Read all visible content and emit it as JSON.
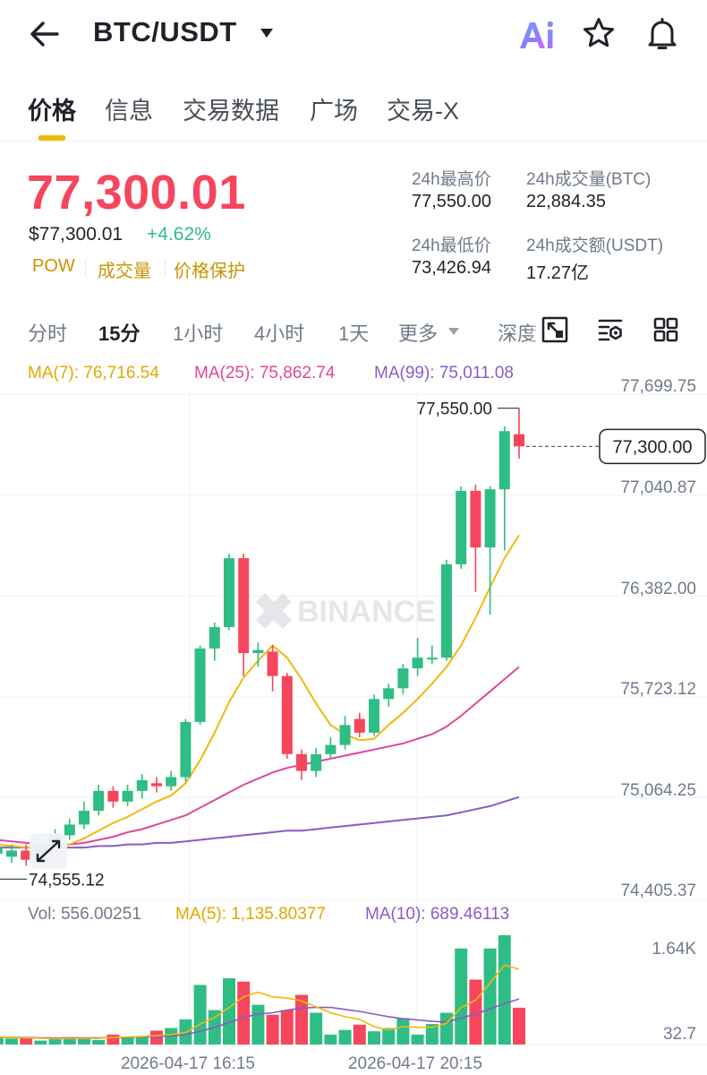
{
  "header": {
    "pair": "BTC/USDT",
    "icons": [
      "back-arrow-icon",
      "caret-down-icon",
      "ai-icon",
      "star-icon",
      "bell-icon"
    ]
  },
  "tabs": [
    {
      "label": "价格",
      "active": true
    },
    {
      "label": "信息",
      "active": false
    },
    {
      "label": "交易数据",
      "active": false
    },
    {
      "label": "广场",
      "active": false
    },
    {
      "label": "交易-X",
      "active": false
    }
  ],
  "price": {
    "last": "77,300.01",
    "usd": "$77,300.01",
    "change": "+4.62%",
    "tags": [
      "POW",
      "成交量",
      "价格保护"
    ]
  },
  "stats": {
    "high_label": "24h最高价",
    "high_value": "77,550.00",
    "vol_btc_label": "24h成交量(BTC)",
    "vol_btc_value": "22,884.35",
    "low_label": "24h最低价",
    "low_value": "73,426.94",
    "vol_usdt_label": "24h成交额(USDT)",
    "vol_usdt_value": "17.27亿"
  },
  "intervals": {
    "items": [
      "分时",
      "15分",
      "1小时",
      "4小时",
      "1天",
      "更多",
      "深度"
    ],
    "active": "15分"
  },
  "indicators": {
    "ma7": "MA(7): 76,716.54",
    "ma25": "MA(25): 75,862.74",
    "ma99": "MA(99): 75,011.08",
    "vol": "Vol: 556.00251",
    "vol_ma5": "MA(5): 1,135.80377",
    "vol_ma10": "MA(10): 689.46113"
  },
  "colors": {
    "up": "#2ebd85",
    "down": "#f6465d",
    "ma7": "#f0b90b",
    "ma25": "#e0469c",
    "ma99": "#8a5cc4",
    "accent": "#f0b90b"
  },
  "chart_data": {
    "type": "candlestick",
    "watermark": "BINANCE",
    "y_axis_ticks": [
      "77,699.75",
      "77,040.87",
      "76,382.00",
      "75,723.12",
      "75,064.25",
      "74,405.37"
    ],
    "ylim": [
      74300,
      77800
    ],
    "x_axis_ticks": [
      "2026-04-17 16:15",
      "2026-04-17 20:15"
    ],
    "last_price_label": "77,300.00",
    "last_price": 77300,
    "high_label": "77,550.00",
    "high": 77550,
    "low_label": "74,555.12",
    "low": 74555.12,
    "candles": [
      [
        74640,
        74680,
        74600,
        74720
      ],
      [
        74620,
        74660,
        74580,
        74700
      ],
      [
        74660,
        74600,
        74560,
        74700
      ],
      [
        74610,
        74700,
        74590,
        74740
      ],
      [
        74700,
        74760,
        74670,
        74800
      ],
      [
        74760,
        74830,
        74730,
        74870
      ],
      [
        74830,
        74920,
        74800,
        74980
      ],
      [
        74920,
        75050,
        74890,
        75090
      ],
      [
        75050,
        74980,
        74940,
        75080
      ],
      [
        74980,
        75050,
        74950,
        75090
      ],
      [
        75050,
        75120,
        75000,
        75160
      ],
      [
        75100,
        75080,
        75040,
        75140
      ],
      [
        75080,
        75140,
        75050,
        75180
      ],
      [
        75140,
        75500,
        75110,
        75520
      ],
      [
        75500,
        75980,
        75480,
        76000
      ],
      [
        75980,
        76120,
        75900,
        76150
      ],
      [
        76120,
        76570,
        76100,
        76600
      ],
      [
        76570,
        75950,
        75800,
        76600
      ],
      [
        75950,
        75970,
        75860,
        76020
      ],
      [
        75960,
        75800,
        75700,
        76000
      ],
      [
        75800,
        75290,
        75260,
        75820
      ],
      [
        75290,
        75180,
        75120,
        75320
      ],
      [
        75180,
        75290,
        75140,
        75330
      ],
      [
        75290,
        75350,
        75260,
        75400
      ],
      [
        75350,
        75480,
        75320,
        75540
      ],
      [
        75520,
        75430,
        75400,
        75560
      ],
      [
        75430,
        75650,
        75410,
        75680
      ],
      [
        75650,
        75720,
        75600,
        75750
      ],
      [
        75720,
        75850,
        75680,
        75880
      ],
      [
        75850,
        75920,
        75800,
        76050
      ],
      [
        75920,
        75920,
        75880,
        76000
      ],
      [
        75920,
        76530,
        75900,
        76560
      ],
      [
        76530,
        77010,
        76500,
        77040
      ],
      [
        77010,
        76640,
        76350,
        77050
      ],
      [
        76640,
        77020,
        76200,
        77040
      ],
      [
        77020,
        77400,
        76620,
        77430
      ],
      [
        77380,
        77300,
        77220,
        77550
      ]
    ],
    "ma7": [
      74700,
      74690,
      74680,
      74670,
      74680,
      74700,
      74740,
      74790,
      74840,
      74880,
      74930,
      74980,
      75020,
      75100,
      75250,
      75430,
      75630,
      75790,
      75900,
      76000,
      75920,
      75780,
      75620,
      75480,
      75420,
      75380,
      75390,
      75480,
      75560,
      75650,
      75750,
      75860,
      76000,
      76180,
      76380,
      76570,
      76720
    ],
    "ma25": [
      74730,
      74720,
      74710,
      74700,
      74700,
      74700,
      74710,
      74730,
      74750,
      74780,
      74800,
      74830,
      74860,
      74890,
      74940,
      74990,
      75040,
      75090,
      75130,
      75170,
      75200,
      75220,
      75240,
      75260,
      75280,
      75300,
      75320,
      75340,
      75360,
      75390,
      75420,
      75470,
      75540,
      75620,
      75700,
      75780,
      75860
    ],
    "ma99": [
      74680,
      74680,
      74680,
      74680,
      74680,
      74680,
      74680,
      74690,
      74690,
      74700,
      74700,
      74710,
      74710,
      74720,
      74730,
      74740,
      74750,
      74760,
      74770,
      74780,
      74790,
      74790,
      74800,
      74810,
      74820,
      74830,
      74840,
      74850,
      74860,
      74870,
      74880,
      74890,
      74910,
      74930,
      74950,
      74980,
      75010
    ],
    "volume_axis_ticks": [
      "1.64K",
      "32.7"
    ],
    "volume": [
      120,
      90,
      100,
      60,
      80,
      110,
      90,
      70,
      150,
      120,
      130,
      210,
      250,
      380,
      900,
      520,
      1000,
      950,
      600,
      450,
      520,
      750,
      480,
      150,
      220,
      300,
      200,
      250,
      400,
      150,
      310,
      480,
      1450,
      980,
      1450,
      1650,
      556
    ],
    "vol_ma5": [
      110,
      105,
      100,
      95,
      90,
      90,
      90,
      95,
      105,
      115,
      120,
      135,
      150,
      180,
      310,
      410,
      560,
      720,
      790,
      720,
      700,
      660,
      570,
      480,
      420,
      380,
      270,
      220,
      270,
      260,
      260,
      320,
      560,
      670,
      930,
      1200,
      1136
    ],
    "vol_ma10": [
      110,
      110,
      105,
      100,
      100,
      100,
      100,
      100,
      105,
      110,
      115,
      120,
      130,
      150,
      200,
      260,
      330,
      410,
      460,
      480,
      520,
      550,
      560,
      560,
      530,
      500,
      460,
      420,
      390,
      370,
      350,
      340,
      400,
      460,
      540,
      620,
      689
    ]
  }
}
